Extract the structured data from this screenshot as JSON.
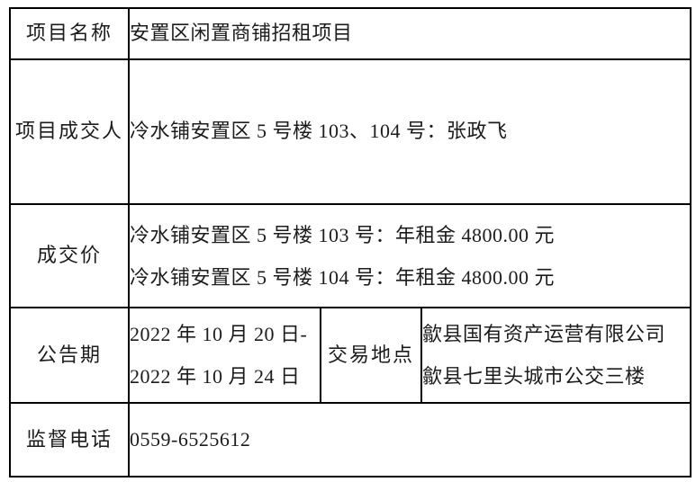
{
  "table": {
    "rows": {
      "project_name": {
        "label": "项目名称",
        "value": "安置区闲置商铺招租项目"
      },
      "project_winner": {
        "label": "项目成交人",
        "value": "冷水铺安置区 5 号楼 103、104 号：张政飞"
      },
      "deal_price": {
        "label": "成交价",
        "line1": "冷水铺安置区 5 号楼 103 号：年租金 4800.00 元",
        "line2": "冷水铺安置区 5 号楼 104 号：年租金 4800.00 元"
      },
      "announcement_period": {
        "label": "公告期",
        "line1": "2022 年 10 月 20 日-",
        "line2": "2022 年 10 月 24 日"
      },
      "trade_location": {
        "label": "交易地点",
        "line1": "歙县国有资产运营有限公司",
        "line2": "歙县七里头城市公交三楼"
      },
      "supervision_phone": {
        "label": "监督电话",
        "value": "0559-6525612"
      }
    },
    "colors": {
      "border": "#000000",
      "text": "#1c1c1c",
      "background": "#ffffff"
    }
  }
}
